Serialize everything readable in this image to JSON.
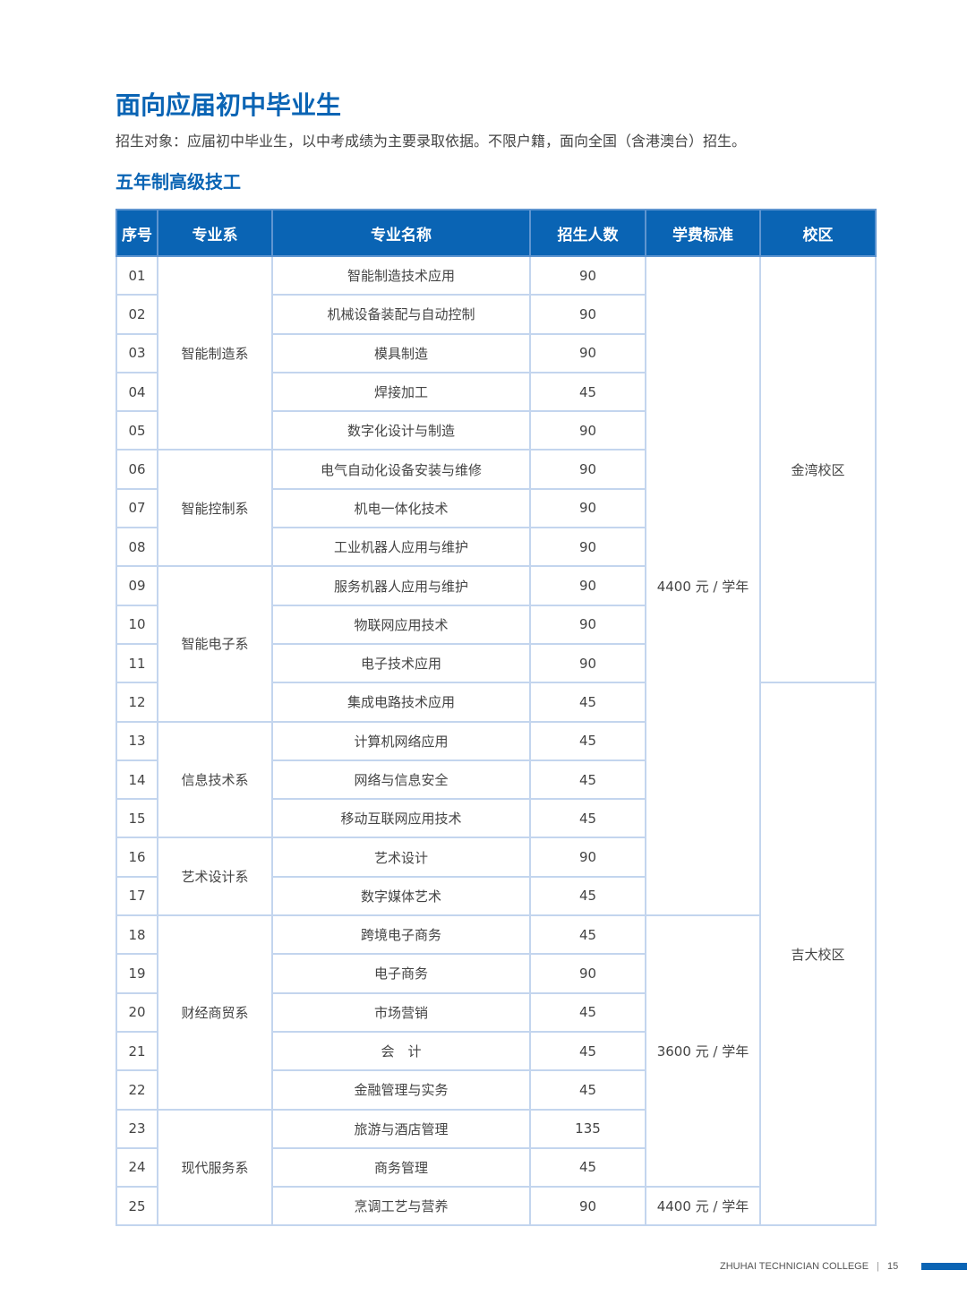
{
  "title": "面向应届初中毕业生",
  "intro": "招生对象：应届初中毕业生，以中考成绩为主要录取依据。不限户籍，面向全国（含港澳台）招生。",
  "subtitle": "五年制高级技工",
  "colors": {
    "accent": "#0a64b4",
    "border": "#c3d5ee"
  },
  "table": {
    "headers": [
      "序号",
      "专业系",
      "专业名称",
      "招生人数",
      "学费标准",
      "校区"
    ],
    "rows": [
      {
        "no": "01",
        "major": "智能制造技术应用",
        "count": "90"
      },
      {
        "no": "02",
        "major": "机械设备装配与自动控制",
        "count": "90"
      },
      {
        "no": "03",
        "major": "模具制造",
        "count": "90"
      },
      {
        "no": "04",
        "major": "焊接加工",
        "count": "45"
      },
      {
        "no": "05",
        "major": "数字化设计与制造",
        "count": "90"
      },
      {
        "no": "06",
        "major": "电气自动化设备安装与维修",
        "count": "90"
      },
      {
        "no": "07",
        "major": "机电一体化技术",
        "count": "90"
      },
      {
        "no": "08",
        "major": "工业机器人应用与维护",
        "count": "90"
      },
      {
        "no": "09",
        "major": "服务机器人应用与维护",
        "count": "90"
      },
      {
        "no": "10",
        "major": "物联网应用技术",
        "count": "90"
      },
      {
        "no": "11",
        "major": "电子技术应用",
        "count": "90"
      },
      {
        "no": "12",
        "major": "集成电路技术应用",
        "count": "45"
      },
      {
        "no": "13",
        "major": "计算机网络应用",
        "count": "45"
      },
      {
        "no": "14",
        "major": "网络与信息安全",
        "count": "45"
      },
      {
        "no": "15",
        "major": "移动互联网应用技术",
        "count": "45"
      },
      {
        "no": "16",
        "major": "艺术设计",
        "count": "90"
      },
      {
        "no": "17",
        "major": "数字媒体艺术",
        "count": "45"
      },
      {
        "no": "18",
        "major": "跨境电子商务",
        "count": "45"
      },
      {
        "no": "19",
        "major": "电子商务",
        "count": "90"
      },
      {
        "no": "20",
        "major": "市场营销",
        "count": "45"
      },
      {
        "no": "21",
        "major": "会　计",
        "count": "45"
      },
      {
        "no": "22",
        "major": "金融管理与实务",
        "count": "45"
      },
      {
        "no": "23",
        "major": "旅游与酒店管理",
        "count": "135"
      },
      {
        "no": "24",
        "major": "商务管理",
        "count": "45"
      },
      {
        "no": "25",
        "major": "烹调工艺与营养",
        "count": "90"
      }
    ],
    "departments": [
      {
        "name": "智能制造系",
        "rows": 5
      },
      {
        "name": "智能控制系",
        "rows": 3
      },
      {
        "name": "智能电子系",
        "rows": 4
      },
      {
        "name": "信息技术系",
        "rows": 3
      },
      {
        "name": "艺术设计系",
        "rows": 2
      },
      {
        "name": "财经商贸系",
        "rows": 5
      },
      {
        "name": "现代服务系",
        "rows": 3
      }
    ],
    "fees": [
      {
        "value": "4400 元 / 学年",
        "rows": 17
      },
      {
        "value": "3600 元 / 学年",
        "rows": 7
      },
      {
        "value": "4400 元 / 学年",
        "rows": 1
      }
    ],
    "campuses": [
      {
        "name": "金湾校区",
        "rows": 11
      },
      {
        "name": "吉大校区",
        "rows": 14
      }
    ]
  },
  "footer": {
    "college": "ZHUHAI TECHNICIAN COLLEGE",
    "separator": "|",
    "page": "15"
  }
}
